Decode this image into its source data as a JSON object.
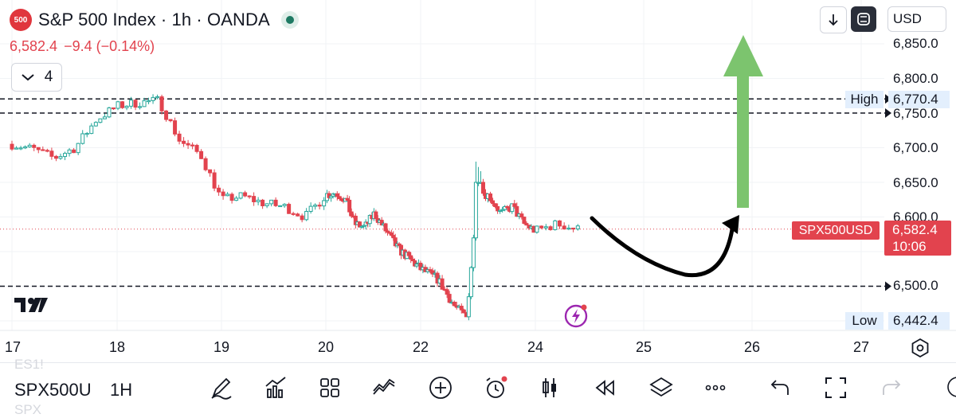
{
  "header": {
    "logo_text": "500",
    "title": "S&P 500 Index · 1h · OANDA",
    "price": "6,582.4",
    "change": "−9.4 (−0.14%)",
    "indicator_count": "4",
    "currency": "USD"
  },
  "chart": {
    "symbol_tag": "SPX500USD",
    "last_price": "6,582.4",
    "countdown": "10:06",
    "high_label": "High",
    "high_value": "6,770.4",
    "low_label": "Low",
    "low_value": "6,442.4",
    "price_labels": [
      "6,850.0",
      "6,800.0",
      "6,750.0",
      "6,700.0",
      "6,650.0",
      "6,600.0",
      "6,500.0"
    ],
    "date_labels": [
      "17",
      "18",
      "19",
      "20",
      "22",
      "24",
      "25",
      "26",
      "27"
    ],
    "colors": {
      "up": "#26a69a",
      "down": "#e2434e",
      "arrow": "#7cc46e",
      "accent": "#e2434e"
    }
  },
  "chart_data": {
    "type": "candlestick",
    "x_unit": "day",
    "y_unit": "USD",
    "ylim": [
      6430,
      6870
    ],
    "xlim": [
      17.0,
      27.0
    ],
    "series": [
      {
        "name": "SPX500USD",
        "x": [
          17.0,
          17.2,
          17.4,
          17.6,
          17.8,
          18.0,
          18.2,
          18.4,
          18.6,
          18.8,
          19.0,
          19.2,
          19.4,
          19.6,
          19.8,
          20.0,
          20.2,
          20.4,
          20.6,
          20.8,
          21.0,
          21.5,
          22.0,
          22.3,
          22.6,
          22.8,
          23.0,
          23.2,
          23.4,
          23.6,
          23.8,
          24.0,
          24.2,
          24.4
        ],
        "values": [
          6705,
          6698,
          6685,
          6700,
          6740,
          6760,
          6765,
          6768,
          6710,
          6690,
          6625,
          6630,
          6620,
          6615,
          6600,
          6632,
          6635,
          6625,
          6590,
          6585,
          6605,
          6555,
          6525,
          6510,
          6470,
          6455,
          6640,
          6630,
          6605,
          6615,
          6590,
          6580,
          6590,
          6582
        ]
      }
    ],
    "levels": [
      {
        "label": "High",
        "value": 6770.4,
        "style": "dashed"
      },
      {
        "value": 6750.0,
        "style": "dashed"
      },
      {
        "value": 6500.0,
        "style": "dashed"
      },
      {
        "label": "SPX500USD",
        "value": 6582.4,
        "style": "dotted"
      }
    ],
    "annotations": [
      {
        "type": "curved-arrow",
        "color": "#000000"
      },
      {
        "type": "up-arrow",
        "color": "#7cc46e"
      }
    ]
  },
  "toolbar": {
    "symbol": "SPX500U",
    "interval": "1H",
    "ghost_top": "ES1!",
    "ghost_bottom": "SPX"
  },
  "icons": [
    "logo-500-icon",
    "status-dot-icon",
    "chevron-down-icon",
    "arrow-down-icon",
    "fullscreen-icon",
    "tradingview-logo-icon",
    "flash-icon",
    "settings-icon",
    "pen-icon",
    "chart-add-icon",
    "grid-icon",
    "compare-icon",
    "plus-circle-icon",
    "alarm-icon",
    "candles-icon",
    "replay-icon",
    "layers-icon",
    "more-icon",
    "undo-icon",
    "expand-icon",
    "redo-icon",
    "user-icon"
  ]
}
